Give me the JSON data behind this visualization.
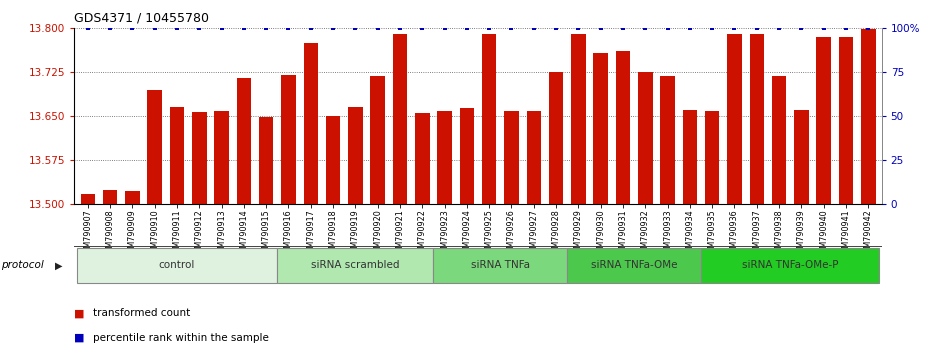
{
  "title": "GDS4371 / 10455780",
  "samples": [
    "GSM790907",
    "GSM790908",
    "GSM790909",
    "GSM790910",
    "GSM790911",
    "GSM790912",
    "GSM790913",
    "GSM790914",
    "GSM790915",
    "GSM790916",
    "GSM790917",
    "GSM790918",
    "GSM790919",
    "GSM790920",
    "GSM790921",
    "GSM790922",
    "GSM790923",
    "GSM790924",
    "GSM790925",
    "GSM790926",
    "GSM790927",
    "GSM790928",
    "GSM790929",
    "GSM790930",
    "GSM790931",
    "GSM790932",
    "GSM790933",
    "GSM790934",
    "GSM790935",
    "GSM790936",
    "GSM790937",
    "GSM790938",
    "GSM790939",
    "GSM790940",
    "GSM790941",
    "GSM790942"
  ],
  "bar_values": [
    13.516,
    13.523,
    13.521,
    13.695,
    13.665,
    13.657,
    13.658,
    13.715,
    13.648,
    13.72,
    13.775,
    13.65,
    13.665,
    13.718,
    13.79,
    13.655,
    13.658,
    13.663,
    13.79,
    13.658,
    13.658,
    13.725,
    13.79,
    13.758,
    13.762,
    13.725,
    13.718,
    13.66,
    13.658,
    13.79,
    13.79,
    13.718,
    13.66,
    13.785,
    13.785,
    13.798
  ],
  "protocol_groups": [
    {
      "label": "control",
      "start": 0,
      "end": 9,
      "color": "#dff2df"
    },
    {
      "label": "siRNA scrambled",
      "start": 9,
      "end": 16,
      "color": "#b0e8b0"
    },
    {
      "label": "siRNA TNFa",
      "start": 16,
      "end": 22,
      "color": "#7cd87c"
    },
    {
      "label": "siRNA TNFa-OMe",
      "start": 22,
      "end": 28,
      "color": "#4cc84c"
    },
    {
      "label": "siRNA TNFa-OMe-P",
      "start": 28,
      "end": 36,
      "color": "#22cc22"
    }
  ],
  "bar_color": "#cc1100",
  "percentile_color": "#0000bb",
  "ylim_left": [
    13.5,
    13.8
  ],
  "ylim_right": [
    0,
    100
  ],
  "yticks_left": [
    13.5,
    13.575,
    13.65,
    13.725,
    13.8
  ],
  "yticks_right": [
    0,
    25,
    50,
    75,
    100
  ],
  "ytick_labels_right": [
    "0",
    "25",
    "50",
    "75",
    "100%"
  ],
  "legend_transformed": "transformed count",
  "legend_percentile": "percentile rank within the sample",
  "protocol_label": "protocol",
  "background_color": "#ffffff"
}
